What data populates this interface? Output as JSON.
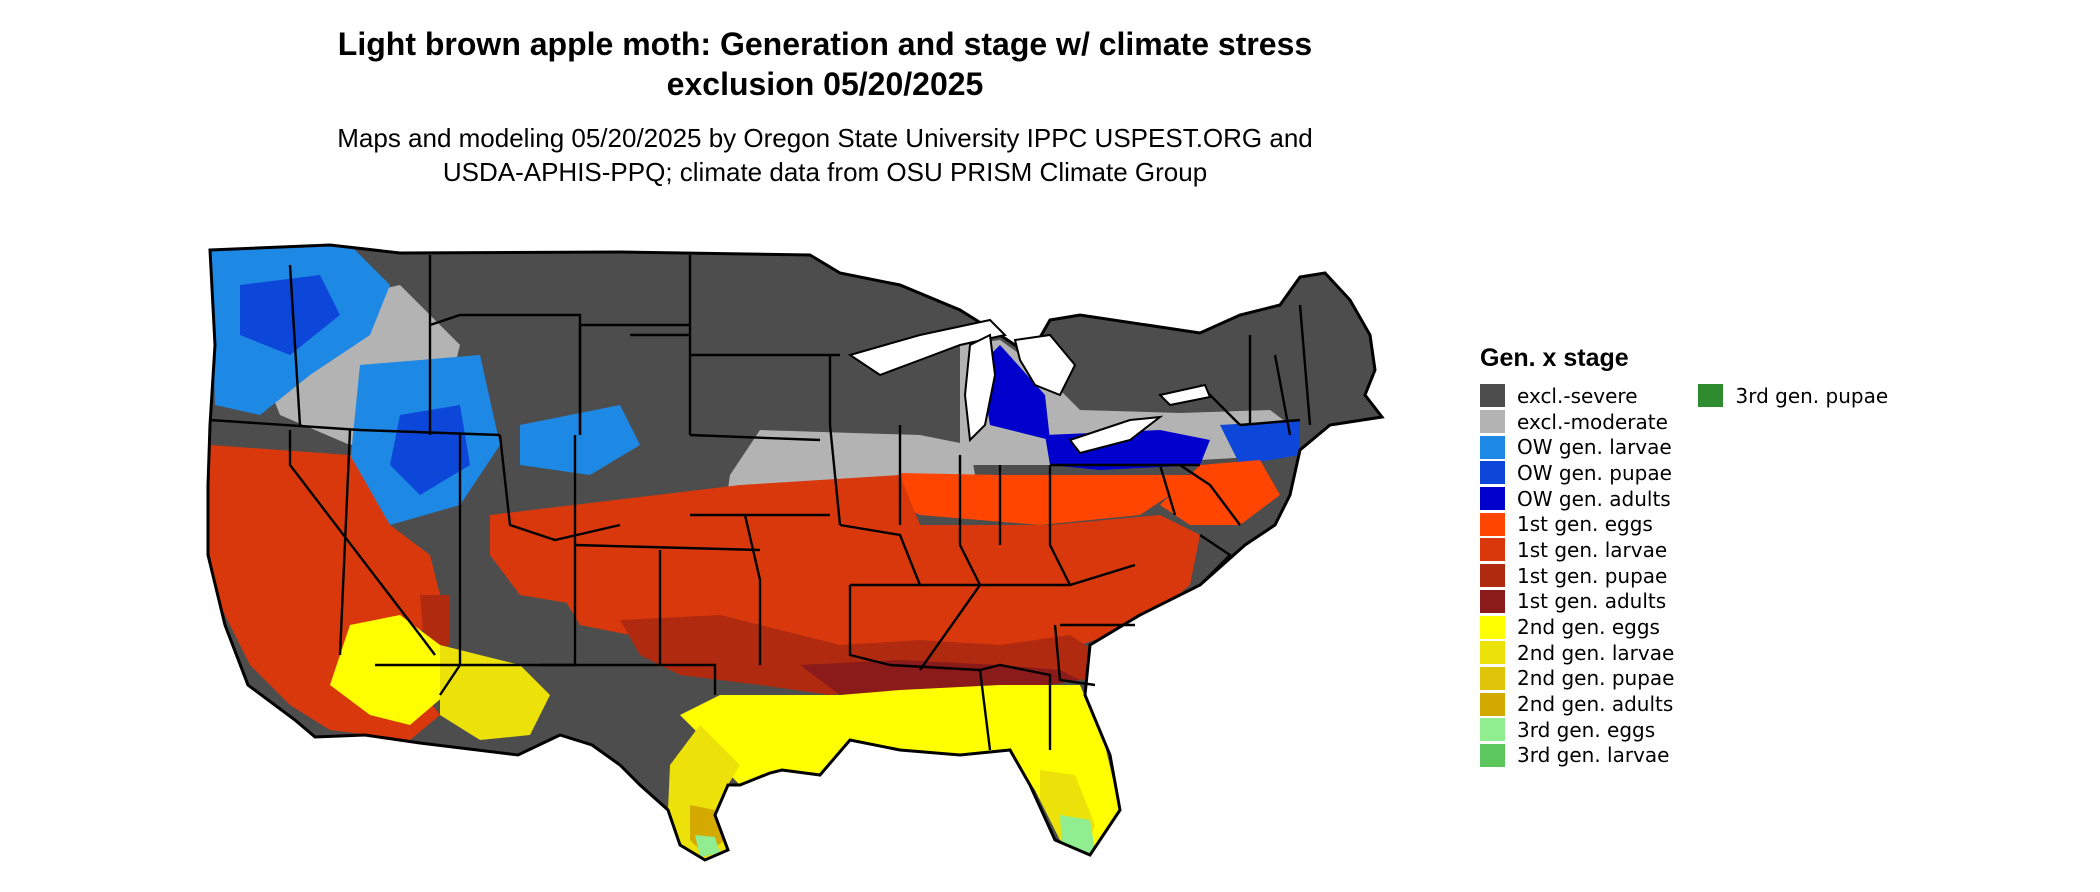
{
  "title": {
    "line1": "Light brown apple moth: Generation and stage w/ climate stress",
    "line2": "exclusion 05/20/2025"
  },
  "subtitle": {
    "line1": "Maps and modeling 05/20/2025 by Oregon State University IPPC USPEST.ORG and",
    "line2": "USDA-APHIS-PPQ; climate data from OSU PRISM Climate Group"
  },
  "legend": {
    "title": "Gen. x stage",
    "items": [
      {
        "label": "excl.-severe",
        "color": "#4d4d4d"
      },
      {
        "label": "excl.-moderate",
        "color": "#b3b3b3"
      },
      {
        "label": "OW gen. larvae",
        "color": "#1e88e5"
      },
      {
        "label": "OW gen. pupae",
        "color": "#0d47d9"
      },
      {
        "label": "OW gen. adults",
        "color": "#0000cc"
      },
      {
        "label": "1st gen. eggs",
        "color": "#ff4500"
      },
      {
        "label": "1st gen. larvae",
        "color": "#d9380c"
      },
      {
        "label": "1st gen. pupae",
        "color": "#b02a10"
      },
      {
        "label": "1st gen. adults",
        "color": "#8b1a1a"
      },
      {
        "label": "2nd gen. eggs",
        "color": "#ffff00"
      },
      {
        "label": "2nd gen. larvae",
        "color": "#ede10a"
      },
      {
        "label": "2nd gen. pupae",
        "color": "#e0c40a"
      },
      {
        "label": "2nd gen. adults",
        "color": "#d4aa00"
      },
      {
        "label": "3rd gen. eggs",
        "color": "#90ee90"
      },
      {
        "label": "3rd gen. larvae",
        "color": "#5cc75c"
      },
      {
        "label": "3rd gen. pupae",
        "color": "#2e8b2e"
      }
    ]
  },
  "map": {
    "region": "contiguous United States",
    "stage_colors": {
      "excl_severe": "#4d4d4d",
      "excl_moderate": "#b3b3b3",
      "ow_larvae": "#1e88e5",
      "ow_pupae": "#0d47d9",
      "ow_adults": "#0000cc",
      "gen1_eggs": "#ff4500",
      "gen1_larvae": "#d9380c",
      "gen1_pupae": "#b02a10",
      "gen1_adults": "#8b1a1a",
      "gen2_eggs": "#ffff00",
      "gen2_larvae": "#ede10a",
      "gen2_pupae": "#e0c40a",
      "gen2_adults": "#d4aa00",
      "gen3_eggs": "#90ee90",
      "gen3_larvae": "#5cc75c",
      "gen3_pupae": "#2e8b2e"
    }
  }
}
